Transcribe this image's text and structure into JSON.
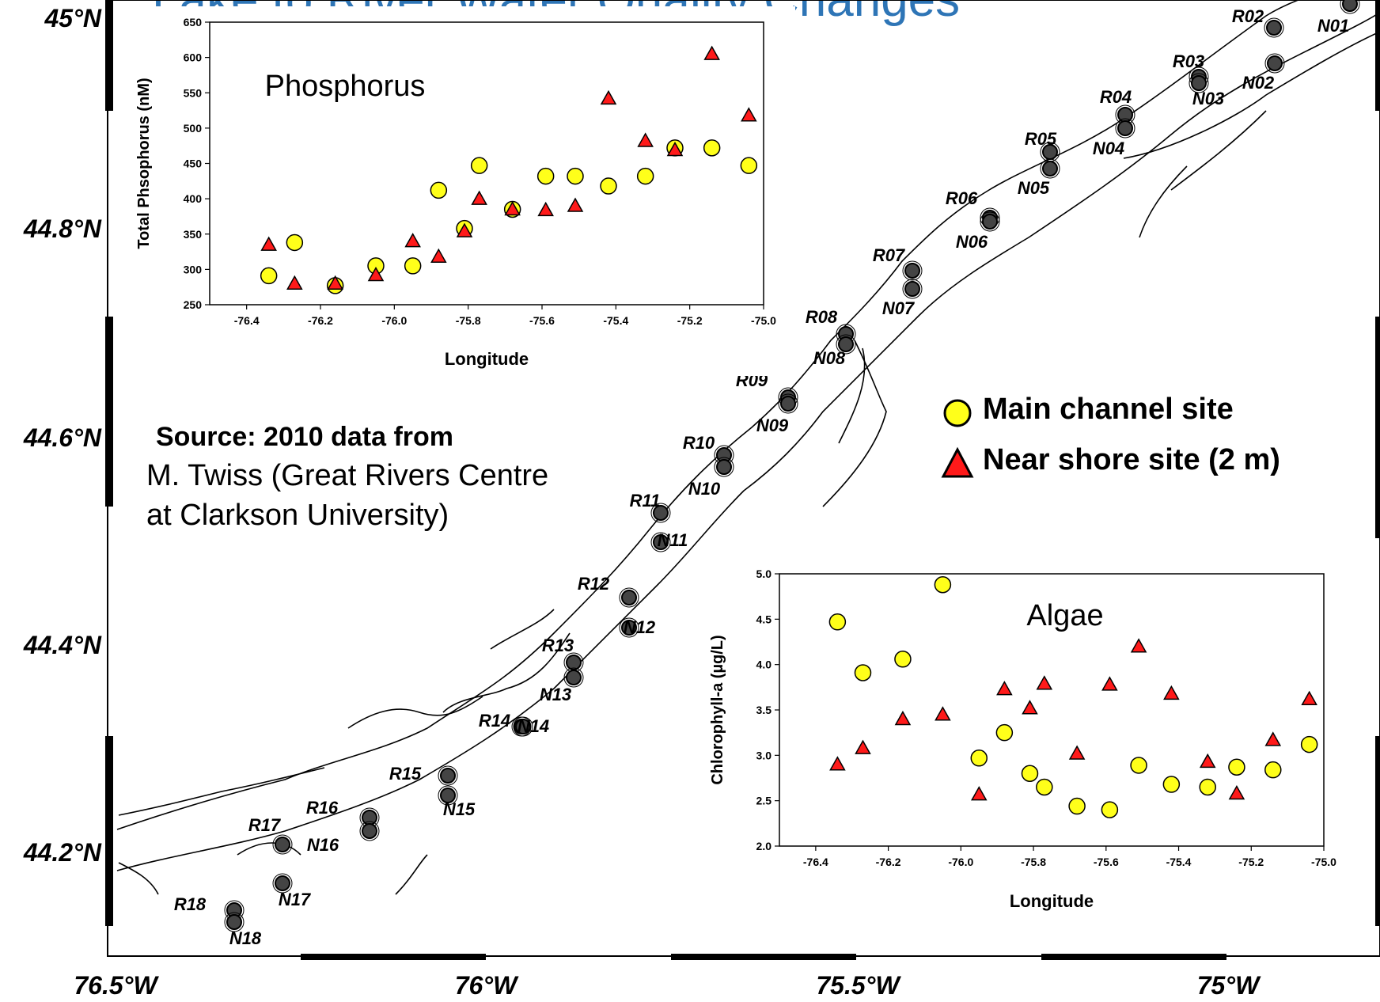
{
  "header": {
    "title_fragment": "Lake to River Water Quality Changes"
  },
  "map": {
    "lat_labels": [
      "45°N",
      "44.8°N",
      "44.6°N",
      "44.4°N",
      "44.2°N"
    ],
    "lon_labels": [
      "76.5°W",
      "76°W",
      "75.5°W",
      "75°W"
    ],
    "river_sites": [
      "R02",
      "R03",
      "R04",
      "R05",
      "R06",
      "R07",
      "R08",
      "R09",
      "R10",
      "R11",
      "R12",
      "R13",
      "R14",
      "R15",
      "R16",
      "R17",
      "R18"
    ],
    "nearshore_sites": [
      "N01",
      "N02",
      "N03",
      "N04",
      "N05",
      "N06",
      "N07",
      "N08",
      "N09",
      "N10",
      "N11",
      "N12",
      "N13",
      "N14",
      "N15",
      "N16",
      "N17",
      "N18"
    ]
  },
  "legend": {
    "main_channel": "Main channel site",
    "near_shore": "Near shore site (2 m)",
    "main_color": "#ffff1a",
    "near_color": "#ff1a1a"
  },
  "source": {
    "line1": "Source: 2010 data from",
    "line2": "M. Twiss (Great Rivers Centre",
    "line3": "at Clarkson University)"
  },
  "chart_data": [
    {
      "type": "scatter",
      "title": "Phosphorus",
      "xlabel": "Longitude",
      "ylabel": "Total Phsophorus (nM)",
      "xlim": [
        -76.5,
        -75.0
      ],
      "ylim": [
        250,
        650
      ],
      "xticks": [
        "-76.4",
        "-76.2",
        "-76.0",
        "-75.8",
        "-75.6",
        "-75.4",
        "-75.2",
        "-75.0"
      ],
      "yticks": [
        "250",
        "300",
        "350",
        "400",
        "450",
        "500",
        "550",
        "600",
        "650"
      ],
      "series": [
        {
          "name": "Main channel site",
          "marker": "circle",
          "x": [
            -76.34,
            -76.27,
            -76.16,
            -76.05,
            -75.95,
            -75.88,
            -75.81,
            -75.77,
            -75.68,
            -75.59,
            -75.51,
            -75.42,
            -75.32,
            -75.24,
            -75.14,
            -75.04
          ],
          "y": [
            291,
            338,
            277,
            305,
            305,
            412,
            358,
            447,
            385,
            432,
            432,
            418,
            432,
            472,
            472,
            447
          ]
        },
        {
          "name": "Near shore site (2 m)",
          "marker": "triangle",
          "x": [
            -76.34,
            -76.27,
            -76.16,
            -76.05,
            -75.95,
            -75.88,
            -75.81,
            -75.77,
            -75.68,
            -75.59,
            -75.51,
            -75.42,
            -75.32,
            -75.24,
            -75.14,
            -75.04
          ],
          "y": [
            335,
            280,
            280,
            292,
            340,
            318,
            354,
            400,
            385,
            384,
            390,
            542,
            482,
            469,
            605,
            518
          ]
        }
      ]
    },
    {
      "type": "scatter",
      "title": "Algae",
      "xlabel": "Longitude",
      "ylabel": "Chlorophyll-a (µg/L)",
      "xlim": [
        -76.5,
        -75.0
      ],
      "ylim": [
        2.0,
        5.0
      ],
      "xticks": [
        "-76.4",
        "-76.2",
        "-76.0",
        "-75.8",
        "-75.6",
        "-75.4",
        "-75.2",
        "-75.0"
      ],
      "yticks": [
        "2.0",
        "2.5",
        "3.0",
        "3.5",
        "4.0",
        "4.5",
        "5.0"
      ],
      "series": [
        {
          "name": "Main channel site",
          "marker": "circle",
          "x": [
            -76.34,
            -76.27,
            -76.16,
            -76.05,
            -75.95,
            -75.88,
            -75.81,
            -75.77,
            -75.68,
            -75.59,
            -75.51,
            -75.42,
            -75.32,
            -75.24,
            -75.14,
            -75.04
          ],
          "y": [
            4.47,
            3.91,
            4.06,
            4.88,
            2.97,
            3.25,
            2.8,
            2.65,
            2.44,
            2.4,
            2.89,
            2.68,
            2.65,
            2.87,
            2.84,
            3.12
          ]
        },
        {
          "name": "Near shore site (2 m)",
          "marker": "triangle",
          "x": [
            -76.34,
            -76.27,
            -76.16,
            -76.05,
            -75.95,
            -75.88,
            -75.81,
            -75.77,
            -75.68,
            -75.59,
            -75.51,
            -75.42,
            -75.32,
            -75.24,
            -75.14,
            -75.04
          ],
          "y": [
            2.9,
            3.08,
            3.4,
            3.45,
            2.57,
            3.73,
            3.52,
            3.79,
            3.02,
            3.78,
            4.2,
            3.68,
            2.93,
            2.58,
            3.17,
            3.62
          ]
        }
      ]
    }
  ]
}
